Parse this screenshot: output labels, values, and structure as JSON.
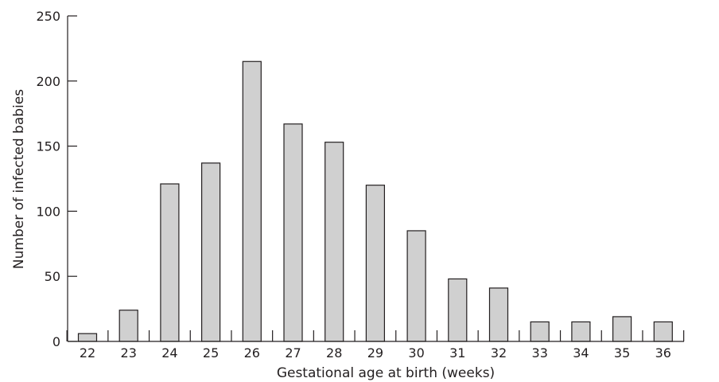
{
  "chart_data": {
    "type": "bar",
    "categories": [
      "22",
      "23",
      "24",
      "25",
      "26",
      "27",
      "28",
      "29",
      "30",
      "31",
      "32",
      "33",
      "34",
      "35",
      "36"
    ],
    "values": [
      6,
      24,
      121,
      137,
      215,
      167,
      153,
      120,
      85,
      48,
      41,
      15,
      15,
      19,
      15
    ],
    "xlabel": "Gestational age at birth (weeks)",
    "ylabel": "Number of infected babies",
    "ylim": [
      0,
      250
    ],
    "yticks": [
      0,
      50,
      100,
      150,
      200,
      250
    ],
    "grid": false,
    "legend": "none",
    "bar_color": "#d0d0d0",
    "edge_color": "#231f20"
  }
}
